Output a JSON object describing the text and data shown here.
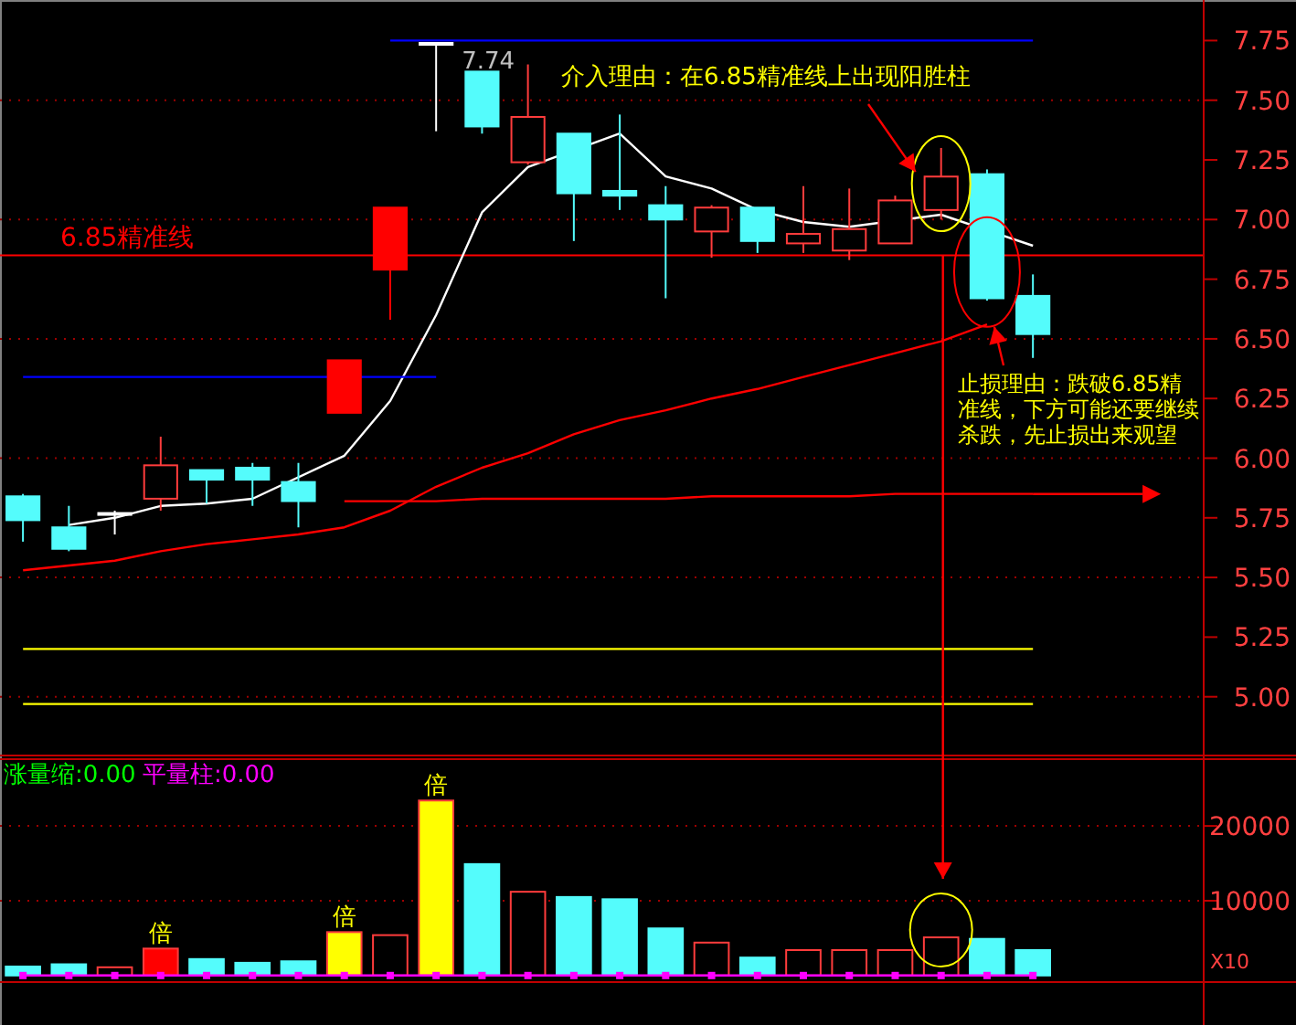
{
  "chart_data": [
    {
      "type": "candlestick",
      "categories": [
        null,
        null,
        null,
        null,
        null,
        null,
        null,
        null,
        null,
        null,
        null,
        null,
        null,
        null,
        null,
        null,
        null,
        null,
        null,
        null,
        null,
        null,
        null
      ],
      "series": [
        {
          "type": "candlestick",
          "color": "#ff3c3c",
          "ohlc": [
            [
              5.84,
              5.85,
              5.65,
              5.74
            ],
            [
              5.71,
              5.8,
              5.61,
              5.62
            ],
            [
              5.77,
              5.78,
              5.68,
              5.77
            ],
            [
              5.83,
              6.09,
              5.78,
              5.97
            ],
            [
              5.95,
              5.95,
              5.81,
              5.91
            ],
            [
              5.96,
              5.98,
              5.8,
              5.91
            ],
            [
              5.9,
              5.98,
              5.71,
              5.82
            ],
            [
              6.19,
              6.41,
              6.19,
              6.41
            ],
            [
              6.79,
              7.05,
              6.58,
              7.05
            ],
            [
              7.74,
              7.74,
              7.37,
              7.74
            ],
            [
              7.62,
              7.62,
              7.36,
              7.39
            ],
            [
              7.24,
              7.65,
              7.23,
              7.43
            ],
            [
              7.36,
              7.36,
              6.91,
              7.11
            ],
            [
              7.12,
              7.44,
              7.04,
              7.1
            ],
            [
              7.06,
              7.14,
              6.67,
              7.0
            ],
            [
              6.95,
              7.06,
              6.84,
              7.05
            ],
            [
              7.05,
              7.05,
              6.86,
              6.91
            ],
            [
              6.9,
              7.14,
              6.86,
              6.94
            ],
            [
              6.87,
              7.13,
              6.83,
              6.96
            ],
            [
              6.9,
              7.1,
              6.9,
              7.08
            ],
            [
              7.04,
              7.3,
              7.0,
              7.18
            ],
            [
              7.19,
              7.21,
              6.66,
              6.67
            ],
            [
              6.68,
              6.77,
              6.42,
              6.52
            ]
          ],
          "colors": [
            "#54fcfc",
            "#54fcfc",
            "#ffffff",
            "#000000",
            "#54fcfc",
            "#54fcfc",
            "#54fcfc",
            "#ff0000",
            "#ff0000",
            "#ffffff",
            "#54fcfc",
            "#000000",
            "#54fcfc",
            "#54fcfc",
            "#54fcfc",
            "#000000",
            "#54fcfc",
            "#000000",
            "#000000",
            "#000000",
            "#000000",
            "#54fcfc",
            "#54fcfc"
          ]
        },
        {
          "type": "line",
          "color": "#ffffff",
          "values": [
            null,
            5.72,
            5.75,
            5.8,
            5.81,
            5.83,
            null,
            6.01,
            6.24,
            6.6,
            7.03,
            7.22,
            null,
            7.36,
            7.18,
            7.13,
            7.04,
            6.99,
            6.97,
            null,
            7.02,
            null,
            6.89
          ]
        },
        {
          "type": "line",
          "color": "#ff0000",
          "values": [
            5.53,
            5.55,
            5.57,
            5.61,
            5.64,
            5.66,
            5.68,
            5.71,
            5.78,
            5.88,
            5.96,
            6.02,
            6.1,
            6.16,
            6.2,
            6.25,
            6.29,
            6.34,
            6.39,
            6.44,
            6.49,
            6.56,
            null
          ]
        },
        {
          "type": "line",
          "color": "#0000ff",
          "values": [
            null,
            null,
            null,
            null,
            null,
            null,
            null,
            null,
            7.75,
            7.75,
            7.75,
            7.75,
            7.75,
            7.75,
            7.75,
            7.75,
            7.75,
            7.75,
            7.75,
            7.75,
            7.75,
            7.75,
            7.75
          ]
        },
        {
          "type": "line",
          "color": "#0000ff",
          "values": [
            6.34,
            6.34,
            6.34,
            6.34,
            6.34,
            6.34,
            6.34,
            null,
            6.34,
            6.34,
            null,
            null,
            null,
            null,
            null,
            null,
            null,
            null,
            null,
            null,
            null,
            null,
            null
          ]
        },
        {
          "type": "line",
          "color": "#ffff00",
          "values": [
            5.2,
            5.2,
            5.2,
            5.2,
            5.2,
            5.2,
            5.2,
            5.2,
            5.2,
            5.2,
            5.2,
            5.2,
            5.2,
            5.2,
            5.2,
            5.2,
            5.2,
            5.2,
            5.2,
            5.2,
            5.2,
            5.2,
            5.2
          ]
        },
        {
          "type": "line",
          "color": "#ffff00",
          "values": [
            4.97,
            4.97,
            4.97,
            4.97,
            4.97,
            4.97,
            4.97,
            4.97,
            4.97,
            4.97,
            4.97,
            4.97,
            4.97,
            4.97,
            4.97,
            4.97,
            4.97,
            4.97,
            4.97,
            4.97,
            4.97,
            4.97,
            4.97
          ]
        },
        {
          "type": "line",
          "color": "#ff0000",
          "values": [
            null,
            null,
            null,
            null,
            null,
            null,
            null,
            5.82,
            5.82,
            5.82,
            5.83,
            5.83,
            5.83,
            5.83,
            5.83,
            5.84,
            5.84,
            5.84,
            5.84,
            5.85,
            5.85,
            5.85,
            5.85
          ]
        }
      ],
      "ylim": [
        4.75,
        7.92
      ],
      "yticks": [
        {
          "value": 5.0,
          "label": "5.00"
        },
        {
          "value": 5.25,
          "label": "5.25"
        },
        {
          "value": 5.5,
          "label": "5.50"
        },
        {
          "value": 5.75,
          "label": "5.75"
        },
        {
          "value": 6.0,
          "label": "6.00"
        },
        {
          "value": 6.25,
          "label": "6.25"
        },
        {
          "value": 6.5,
          "label": "6.50"
        },
        {
          "value": 6.75,
          "label": "6.75"
        },
        {
          "value": 7.0,
          "label": "7.00"
        },
        {
          "value": 7.25,
          "label": "7.25"
        },
        {
          "value": 7.5,
          "label": "7.50"
        },
        {
          "value": 7.75,
          "label": "7.75"
        }
      ],
      "grid": "y",
      "ref_lines": [
        {
          "axis": "y",
          "value": 6.85,
          "label": "6.85精准线",
          "color": "#ff0000"
        }
      ],
      "annotations": [
        "7.74",
        "介入理由：在6.85精准线上出现阳胜柱",
        "止损理由：跌破6.85精准线，下方可能还要继续杀跌，先止损出来观望"
      ]
    },
    {
      "type": "bar",
      "categories": [
        null,
        null,
        null,
        null,
        null,
        null,
        null,
        null,
        null,
        null,
        null,
        null,
        null,
        null,
        null,
        null,
        null,
        null,
        null,
        null,
        null,
        null,
        null
      ],
      "series": [
        {
          "type": "bar",
          "color": "#ff3c3c",
          "values": [
            1200,
            1500,
            1100,
            3600,
            2200,
            1700,
            1900,
            5800,
            5400,
            23400,
            14900,
            11200,
            10500,
            10200,
            6300,
            4400,
            2400,
            3400,
            3400,
            3400,
            5100,
            4900,
            3400
          ],
          "colors": [
            "#54fcfc",
            "#54fcfc",
            "#000000",
            "#ff0000",
            "#54fcfc",
            "#54fcfc",
            "#54fcfc",
            "#ffff00",
            "#000000",
            "#ffff00",
            "#54fcfc",
            "#000000",
            "#54fcfc",
            "#54fcfc",
            "#54fcfc",
            "#000000",
            "#54fcfc",
            "#000000",
            "#000000",
            "#000000",
            "#000000",
            "#54fcfc",
            "#54fcfc"
          ],
          "value_labels": [
            null,
            null,
            null,
            "倍",
            null,
            null,
            null,
            "倍",
            null,
            "倍",
            null,
            null,
            null,
            null,
            null,
            null,
            null,
            null,
            null,
            null,
            null,
            null,
            null
          ]
        },
        {
          "type": "line",
          "color": "#ff00ff",
          "marker": "square",
          "values": [
            0,
            0,
            0,
            0,
            0,
            0,
            0,
            0,
            0,
            0,
            0,
            0,
            0,
            0,
            0,
            0,
            0,
            0,
            0,
            0,
            0,
            0,
            0
          ]
        }
      ],
      "ylim": [
        -1000,
        29300
      ],
      "yticks": [
        10000,
        20000
      ],
      "grid": "y",
      "annotations": [
        "涨量缩:0.00",
        "平量柱:0.00",
        "X10"
      ]
    }
  ]
}
